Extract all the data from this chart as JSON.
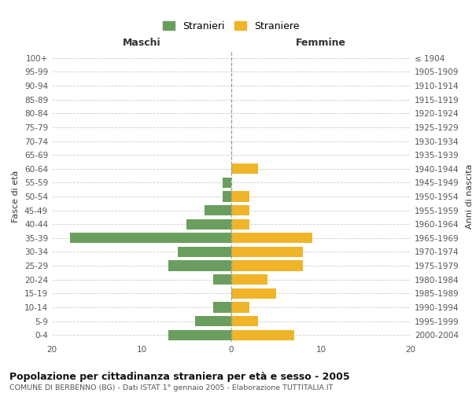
{
  "age_groups": [
    "0-4",
    "5-9",
    "10-14",
    "15-19",
    "20-24",
    "25-29",
    "30-34",
    "35-39",
    "40-44",
    "45-49",
    "50-54",
    "55-59",
    "60-64",
    "65-69",
    "70-74",
    "75-79",
    "80-84",
    "85-89",
    "90-94",
    "95-99",
    "100+"
  ],
  "birth_years": [
    "2000-2004",
    "1995-1999",
    "1990-1994",
    "1985-1989",
    "1980-1984",
    "1975-1979",
    "1970-1974",
    "1965-1969",
    "1960-1964",
    "1955-1959",
    "1950-1954",
    "1945-1949",
    "1940-1944",
    "1935-1939",
    "1930-1934",
    "1925-1929",
    "1920-1924",
    "1915-1919",
    "1910-1914",
    "1905-1909",
    "≤ 1904"
  ],
  "maschi": [
    7,
    4,
    2,
    0,
    2,
    7,
    6,
    18,
    5,
    3,
    1,
    1,
    0,
    0,
    0,
    0,
    0,
    0,
    0,
    0,
    0
  ],
  "femmine": [
    7,
    3,
    2,
    5,
    4,
    8,
    8,
    9,
    2,
    2,
    2,
    0,
    3,
    0,
    0,
    0,
    0,
    0,
    0,
    0,
    0
  ],
  "color_maschi": "#6a9e5e",
  "color_femmine": "#f0b429",
  "title": "Popolazione per cittadinanza straniera per età e sesso - 2005",
  "subtitle": "COMUNE DI BERBENNO (BG) - Dati ISTAT 1° gennaio 2005 - Elaborazione TUTTITALIA.IT",
  "xlabel_left": "Maschi",
  "xlabel_right": "Femmine",
  "ylabel_left": "Fasce di età",
  "ylabel_right": "Anni di nascita",
  "legend_maschi": "Stranieri",
  "legend_femmine": "Straniere",
  "xlim": 20,
  "background_color": "#ffffff",
  "grid_color": "#cccccc"
}
